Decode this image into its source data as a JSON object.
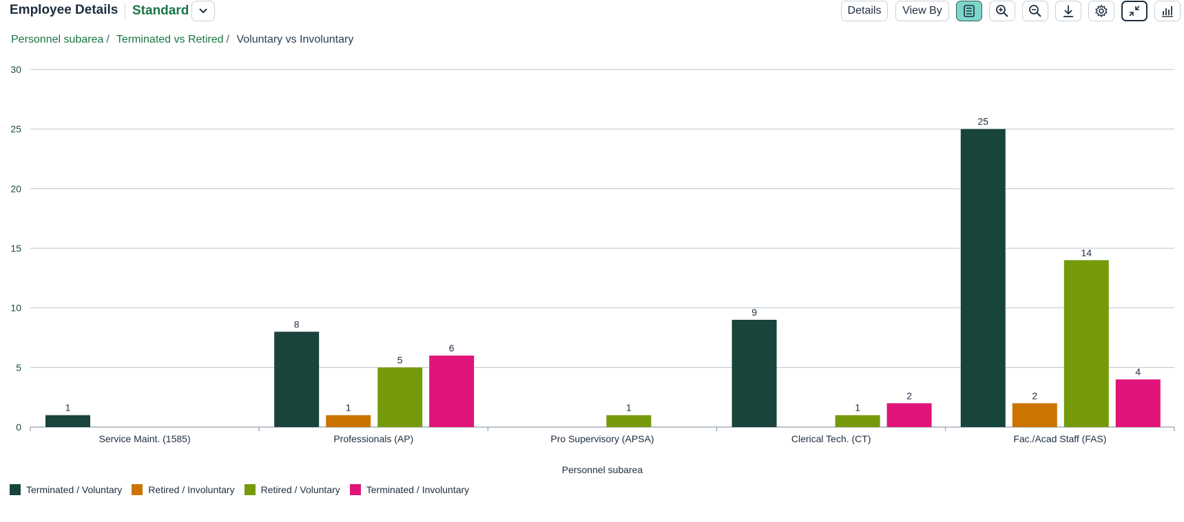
{
  "header": {
    "title": "Employee Details",
    "variant": "Standard",
    "buttons": {
      "details": "Details",
      "view_by": "View By"
    }
  },
  "breadcrumb": {
    "items": [
      "Personnel subarea",
      "Terminated vs Retired"
    ],
    "current": "Voluntary vs Involuntary"
  },
  "chart_data": {
    "type": "bar",
    "title": "",
    "xlabel": "Personnel subarea",
    "ylabel": "",
    "ylim": [
      0,
      30
    ],
    "yticks": [
      0,
      5,
      10,
      15,
      20,
      25,
      30
    ],
    "grid": true,
    "legend_position": "bottom-left",
    "categories": [
      "Service Maint. (1585)",
      "Professionals (AP)",
      "Pro Supervisory (APSA)",
      "Clerical Tech. (CT)",
      "Fac./Acad Staff (FAS)"
    ],
    "series": [
      {
        "name": "Terminated / Voluntary",
        "color": "#19443c",
        "values": [
          1,
          8,
          null,
          9,
          25
        ]
      },
      {
        "name": "Retired / Involuntary",
        "color": "#cc7400",
        "values": [
          null,
          1,
          null,
          null,
          2
        ]
      },
      {
        "name": "Retired / Voluntary",
        "color": "#759a0b",
        "values": [
          null,
          5,
          1,
          1,
          14
        ]
      },
      {
        "name": "Terminated / Involuntary",
        "color": "#e0147a",
        "values": [
          null,
          6,
          null,
          2,
          4
        ]
      }
    ]
  }
}
